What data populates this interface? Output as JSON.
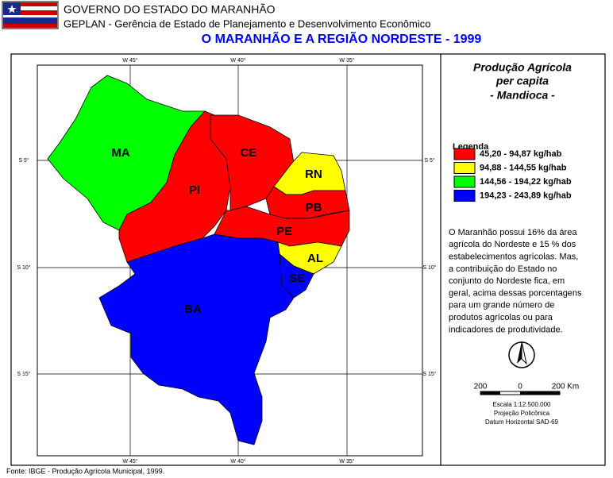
{
  "header": {
    "line1": "GOVERNO DO ESTADO DO MARANHÃO",
    "line2": "GEPLAN - Gerência de Estado de Planejamento e Desenvolvimento Econômico",
    "title": "O MARANHÃO E A REGIÃO NORDESTE - 1999"
  },
  "grid": {
    "lon": [
      "W 45°",
      "W 40°",
      "W 35°"
    ],
    "lat": [
      "S 5°",
      "S 10°",
      "S 15°"
    ]
  },
  "states": [
    {
      "label": "MA"
    },
    {
      "label": "PI"
    },
    {
      "label": "CE"
    },
    {
      "label": "RN"
    },
    {
      "label": "PB"
    },
    {
      "label": "PE"
    },
    {
      "label": "AL"
    },
    {
      "label": "SE"
    },
    {
      "label": "BA"
    }
  ],
  "panel": {
    "title": [
      "Produção Agrícola",
      "per capita",
      "- Mandioca -"
    ],
    "legend": {
      "title": "Legenda",
      "items": [
        {
          "label": "45,20 - 94,87 kg/hab",
          "color": "#ff0000"
        },
        {
          "label": "94,88 - 144,55 kg/hab",
          "color": "#ffff00"
        },
        {
          "label": "144,56 - 194,22 kg/hab",
          "color": "#00ff00"
        },
        {
          "label": "194,23 - 243,89 kg/hab",
          "color": "#0000ff"
        }
      ]
    },
    "text": [
      "O Maranhão possui 16% da área",
      "agrícola do Nordeste e 15 % dos",
      "estabelecimentos agrícolas. Mas,",
      "a contribuição do Estado no",
      "conjunto do Nordeste fica, em",
      "geral, acima dessas porcentagens",
      "para um grande número de",
      "produtos agrícolas ou para",
      "indicadores de produtividade."
    ],
    "scale": {
      "left": "200",
      "mid": "0",
      "right": "200 Km"
    },
    "notes": [
      "Escala 1:12.500.000",
      "Projeção Policônica",
      "Datum Horizontal SAD-69"
    ]
  },
  "footer": "Fonte: IBGE - Produção Agrícola Municipal, 1999."
}
